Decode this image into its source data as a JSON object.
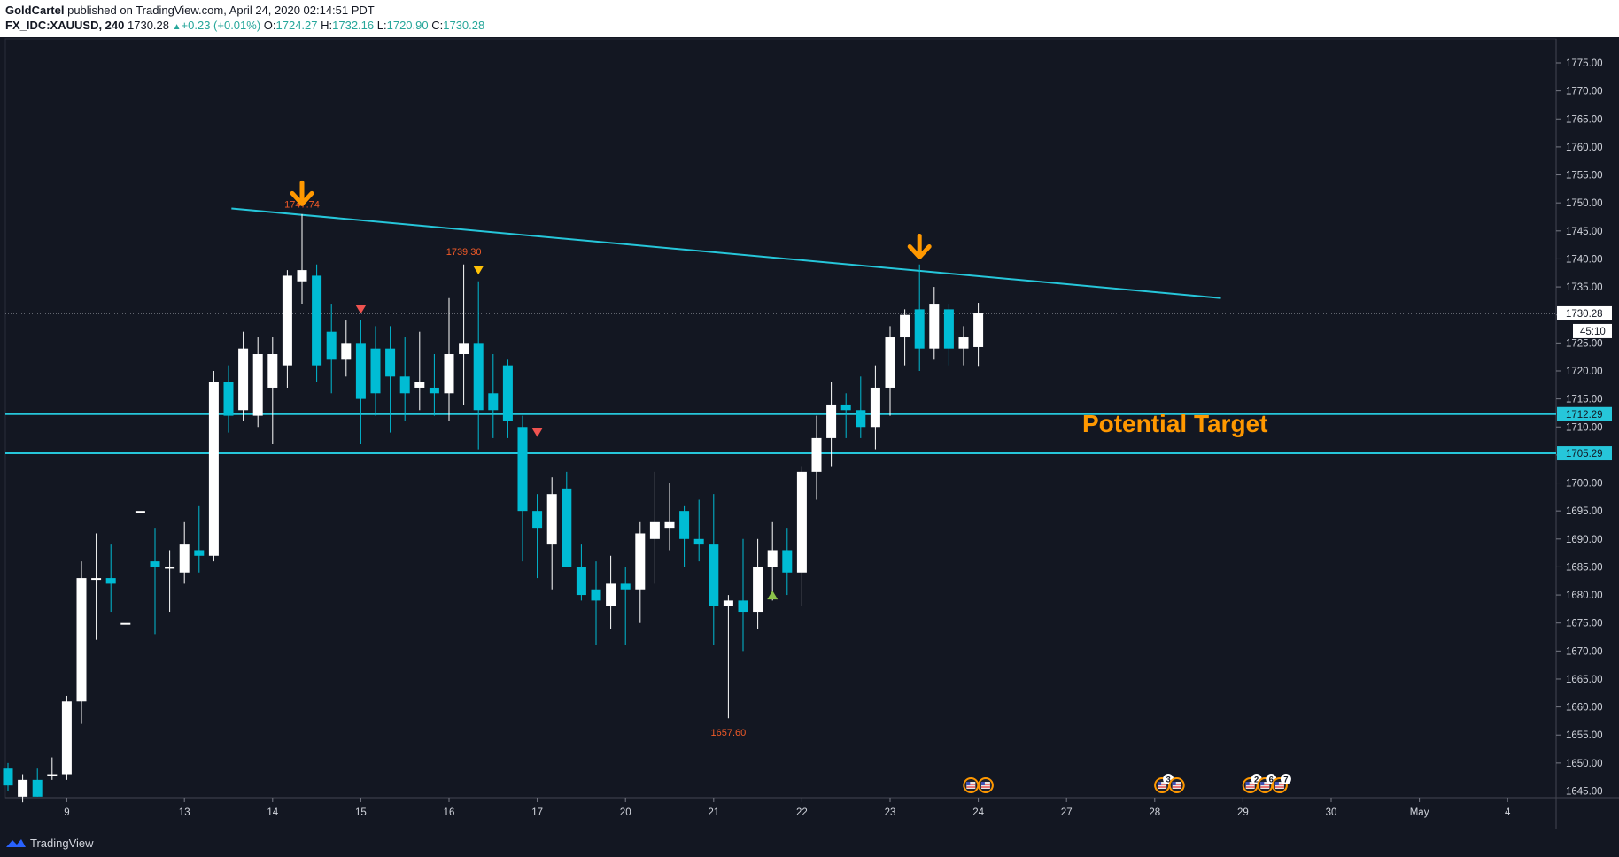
{
  "header": {
    "author": "GoldCartel",
    "published": "published on TradingView.com, April 24, 2020 02:14:51 PDT",
    "symbol": "FX_IDC:XAUUSD, 240",
    "last": "1730.28",
    "change": "+0.23 (+0.01%)",
    "o_label": "O:",
    "o_value": "1724.27",
    "h_label": "H:",
    "h_value": "1732.16",
    "l_label": "L:",
    "l_value": "1720.90",
    "c_label": "C:",
    "c_value": "1730.28"
  },
  "footer": {
    "brand": "TradingView"
  },
  "colors": {
    "background": "#131722",
    "bull": "#ffffff",
    "bear": "#00bcd4",
    "trendline": "#26c6da",
    "annotation": "#ff9800",
    "label_red": "#f05a28",
    "marker_red": "#ef5350",
    "marker_yellow": "#ffc107",
    "marker_green": "#8bc34a"
  },
  "chart_data": {
    "type": "candlestick",
    "timeframe": "240",
    "ylim": [
      1643,
      1780
    ],
    "y_ticks": [
      1645,
      1650,
      1655,
      1660,
      1665,
      1670,
      1675,
      1680,
      1685,
      1690,
      1695,
      1700,
      1705,
      1710,
      1715,
      1720,
      1725,
      1730,
      1735,
      1740,
      1745,
      1750,
      1755,
      1760,
      1765,
      1770,
      1775
    ],
    "x_ticks": [
      {
        "i": 4,
        "label": "9"
      },
      {
        "i": 12,
        "label": "13"
      },
      {
        "i": 18,
        "label": "14"
      },
      {
        "i": 24,
        "label": "15"
      },
      {
        "i": 30,
        "label": "16"
      },
      {
        "i": 36,
        "label": "17"
      },
      {
        "i": 42,
        "label": "20"
      },
      {
        "i": 48,
        "label": "21"
      },
      {
        "i": 54,
        "label": "22"
      },
      {
        "i": 60,
        "label": "23"
      },
      {
        "i": 66,
        "label": "24"
      },
      {
        "i": 72,
        "label": "27"
      },
      {
        "i": 78,
        "label": "28"
      },
      {
        "i": 84,
        "label": "29"
      },
      {
        "i": 90,
        "label": "30"
      },
      {
        "i": 96,
        "label": "May"
      },
      {
        "i": 102,
        "label": "4"
      }
    ],
    "candles": [
      [
        1649,
        1650,
        1645,
        1646
      ],
      [
        1644,
        1648,
        1643,
        1647
      ],
      [
        1647,
        1649,
        1644,
        1644
      ],
      [
        1648,
        1651,
        1647,
        1648
      ],
      [
        1648,
        1662,
        1647,
        1661
      ],
      [
        1661,
        1686,
        1657,
        1683
      ],
      [
        1683,
        1691,
        1672,
        1683
      ],
      [
        1683,
        1689,
        1677,
        1682
      ],
      [
        1675,
        1675,
        1675,
        1675
      ],
      [
        1695,
        1695,
        1695,
        1695
      ],
      [
        1686,
        1692,
        1673,
        1685
      ],
      [
        1685,
        1688,
        1677,
        1685
      ],
      [
        1684,
        1693,
        1682,
        1689
      ],
      [
        1688,
        1696,
        1684,
        1687
      ],
      [
        1687,
        1720,
        1686,
        1718
      ],
      [
        1718,
        1721,
        1709,
        1712
      ],
      [
        1713,
        1727,
        1711,
        1724
      ],
      [
        1712,
        1726,
        1710,
        1723
      ],
      [
        1717,
        1726,
        1707,
        1723
      ],
      [
        1721,
        1738,
        1717,
        1737
      ],
      [
        1736,
        1748,
        1732,
        1738
      ],
      [
        1737,
        1739,
        1718,
        1721
      ],
      [
        1727,
        1732,
        1716,
        1722
      ],
      [
        1722,
        1729,
        1719,
        1725
      ],
      [
        1725,
        1729,
        1707,
        1715
      ],
      [
        1724,
        1728,
        1712,
        1716
      ],
      [
        1724,
        1728,
        1709,
        1719
      ],
      [
        1719,
        1726,
        1711,
        1716
      ],
      [
        1717,
        1727,
        1713,
        1718
      ],
      [
        1717,
        1723,
        1712,
        1716
      ],
      [
        1716,
        1733,
        1711,
        1723
      ],
      [
        1723,
        1739,
        1714,
        1725
      ],
      [
        1725,
        1736,
        1706,
        1713
      ],
      [
        1716,
        1723,
        1708,
        1713
      ],
      [
        1721,
        1722,
        1708,
        1711
      ],
      [
        1710,
        1712,
        1686,
        1695
      ],
      [
        1695,
        1698,
        1683,
        1692
      ],
      [
        1689,
        1701,
        1681,
        1698
      ],
      [
        1699,
        1702,
        1686,
        1685
      ],
      [
        1685,
        1689,
        1679,
        1680
      ],
      [
        1681,
        1686,
        1671,
        1679
      ],
      [
        1678,
        1687,
        1674,
        1682
      ],
      [
        1682,
        1685,
        1671,
        1681
      ],
      [
        1681,
        1693,
        1675,
        1691
      ],
      [
        1690,
        1702,
        1682,
        1693
      ],
      [
        1692,
        1700,
        1688,
        1693
      ],
      [
        1695,
        1696,
        1685,
        1690
      ],
      [
        1690,
        1697,
        1686,
        1689
      ],
      [
        1689,
        1698,
        1671,
        1678
      ],
      [
        1678,
        1680,
        1658,
        1679
      ],
      [
        1679,
        1690,
        1670,
        1677
      ],
      [
        1677,
        1690,
        1674,
        1685
      ],
      [
        1685,
        1693,
        1679,
        1688
      ],
      [
        1688,
        1692,
        1680,
        1684
      ],
      [
        1684,
        1703,
        1678,
        1702
      ],
      [
        1702,
        1712,
        1697,
        1708
      ],
      [
        1708,
        1718,
        1703,
        1714
      ],
      [
        1714,
        1716,
        1708,
        1713
      ],
      [
        1713,
        1719,
        1708,
        1710
      ],
      [
        1710,
        1721,
        1706,
        1717
      ],
      [
        1717,
        1728,
        1712,
        1726
      ],
      [
        1726,
        1731,
        1721,
        1730
      ],
      [
        1731,
        1739,
        1720,
        1724
      ],
      [
        1724,
        1735,
        1722,
        1732
      ],
      [
        1731,
        1732,
        1721,
        1724
      ],
      [
        1724,
        1728,
        1721,
        1726
      ],
      [
        1724.27,
        1732.16,
        1720.9,
        1730.28
      ]
    ],
    "trendline": {
      "start": {
        "i": 15.2,
        "price": 1749
      },
      "end": {
        "i": 82.5,
        "price": 1733
      }
    },
    "support_lines": [
      1712.29,
      1705.29
    ],
    "current_price": 1730.28,
    "countdown": "45:10",
    "price_labels": [
      {
        "i": 20,
        "price": 1747.74,
        "text": "1747.74",
        "pos": "above"
      },
      {
        "i": 31,
        "price": 1739.3,
        "text": "1739.30",
        "pos": "above"
      },
      {
        "i": 49,
        "price": 1657.6,
        "text": "1657.60",
        "pos": "below"
      }
    ],
    "markers": [
      {
        "i": 24,
        "price": 1731,
        "kind": "down",
        "color": "marker_red"
      },
      {
        "i": 32,
        "price": 1738,
        "kind": "down",
        "color": "marker_yellow"
      },
      {
        "i": 36,
        "price": 1709,
        "kind": "down",
        "color": "marker_red"
      },
      {
        "i": 52,
        "price": 1680,
        "kind": "up",
        "color": "marker_green"
      }
    ],
    "arrows": [
      {
        "i": 20,
        "price": 1749.5
      },
      {
        "i": 62,
        "price": 1740
      }
    ],
    "annotation": {
      "text": "Potential Target",
      "i": 79.5,
      "price": 1710.5
    },
    "events": [
      {
        "i": 65.5,
        "label": ""
      },
      {
        "i": 66.5,
        "label": ""
      },
      {
        "i": 78.5,
        "label": "3"
      },
      {
        "i": 79.5,
        "label": ""
      },
      {
        "i": 84.5,
        "label": "2"
      },
      {
        "i": 85.5,
        "label": "6"
      },
      {
        "i": 86.5,
        "label": "7"
      }
    ]
  }
}
